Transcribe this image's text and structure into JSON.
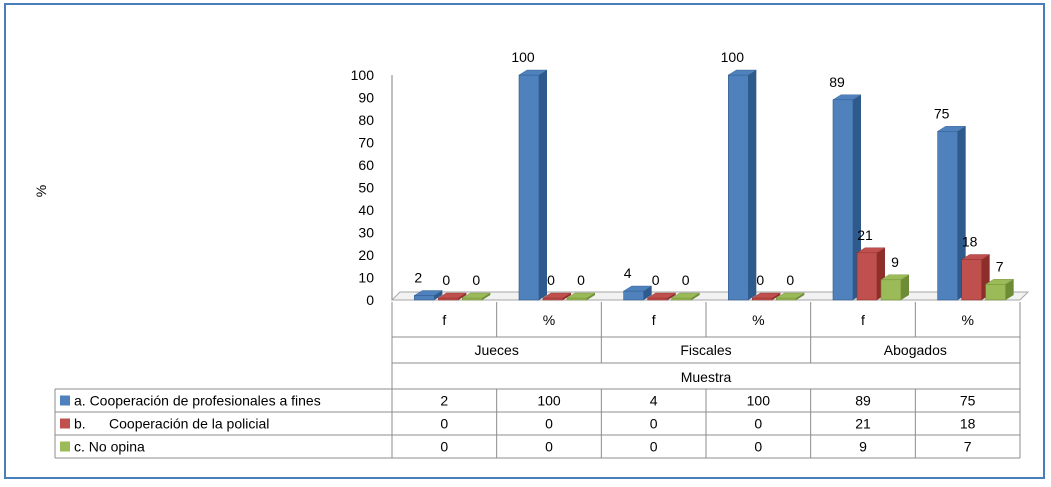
{
  "chart_data": {
    "type": "bar",
    "title": "",
    "ylabel": "%",
    "xlabel": "Muestra",
    "ylim": [
      0,
      100
    ],
    "yticks": [
      0,
      10,
      20,
      30,
      40,
      50,
      60,
      70,
      80,
      90,
      100
    ],
    "groups": [
      "Jueces",
      "Fiscales",
      "Abogados"
    ],
    "categories": [
      "f",
      "%",
      "f",
      "%",
      "f",
      "%"
    ],
    "series": [
      {
        "name": "a. Cooperación de profesionales a fines",
        "values": [
          2,
          100,
          4,
          100,
          89,
          75
        ]
      },
      {
        "name": "b.      Cooperación de la policial",
        "values": [
          0,
          0,
          0,
          0,
          21,
          18
        ]
      },
      {
        "name": "c. No opina",
        "values": [
          0,
          0,
          0,
          0,
          9,
          7
        ]
      }
    ],
    "data_labels": [
      [
        "2",
        "100",
        "4",
        "100",
        "89",
        "75"
      ],
      [
        "0",
        "0",
        "0",
        "0",
        "21",
        "18"
      ],
      [
        "0",
        "0",
        "0",
        "0",
        "9",
        "7"
      ]
    ],
    "colors": {
      "series": [
        "#4F81BD",
        "#C0504D",
        "#9BBB59"
      ],
      "series_dark": [
        "#2F5A8C",
        "#8E2E2B",
        "#6E8B35"
      ],
      "border": "#4A7EBB",
      "grid": "#7F7F7F"
    },
    "legend": "table-below",
    "grid": false
  }
}
